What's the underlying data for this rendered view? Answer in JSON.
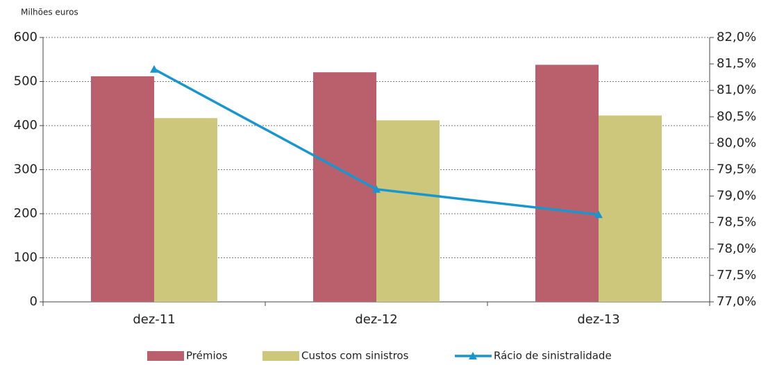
{
  "chart_data": {
    "type": "bar",
    "y_axis_label": "Milhões euros",
    "categories": [
      "dez-11",
      "dez-12",
      "dez-13"
    ],
    "series": [
      {
        "name": "Prémios",
        "color": "#b9606c",
        "values": [
          512,
          521,
          538
        ]
      },
      {
        "name": "Custos com sinistros",
        "color": "#cdc77c",
        "values": [
          417,
          412,
          423
        ]
      },
      {
        "name": "Rácio de sinistralidade",
        "color": "#1a96cf",
        "type": "line",
        "axis": "y2",
        "values": [
          81.4,
          79.13,
          78.65
        ]
      }
    ],
    "ylim": [
      0,
      600
    ],
    "yticks": [
      0,
      100,
      200,
      300,
      400,
      500,
      600
    ],
    "y2lim": [
      77,
      82
    ],
    "y2ticks": [
      {
        "value": 77,
        "label": "77,0%"
      },
      {
        "value": 77.5,
        "label": "77,5%"
      },
      {
        "value": 78,
        "label": "78,0%"
      },
      {
        "value": 78.5,
        "label": "78,5%"
      },
      {
        "value": 79,
        "label": "79,0%"
      },
      {
        "value": 79.5,
        "label": "79,5%"
      },
      {
        "value": 80,
        "label": "80,0%"
      },
      {
        "value": 80.5,
        "label": "80,5%"
      },
      {
        "value": 81,
        "label": "81,0%"
      },
      {
        "value": 81.5,
        "label": "81,5%"
      },
      {
        "value": 82,
        "label": "82,0%"
      }
    ],
    "grid": true
  }
}
